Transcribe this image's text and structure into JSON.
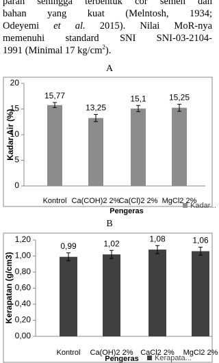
{
  "paragraph": {
    "lines": [
      [
        "parah sehingga terbentuk cor semen dan"
      ],
      [
        "bahan yang kuat (Melntosh, 1934;"
      ],
      [
        "Odeyemi ",
        "et al.",
        " 2015). Nilai MoR-nya"
      ],
      [
        "memenuhi standard SNI SNI-03-2104-"
      ],
      [
        "1991 (Minimal 17 kg/cm",
        "2",
        ")."
      ]
    ]
  },
  "chart_data": [
    {
      "type": "bar",
      "label": "A",
      "x_label": "Pengeras",
      "y_label": "Kadar Air (%)",
      "categories": [
        "Kontrol",
        "Ca(COH)2 2%",
        "Ca(Cl)2 2%",
        "MgCl2  2%"
      ],
      "series": [
        {
          "name": "Kadar...",
          "color": "#8c8c8c",
          "values": [
            15.77,
            13.25,
            15.1,
            15.25
          ],
          "value_labels": [
            "15,77",
            "13,25",
            "15,1",
            "15,25"
          ],
          "errors": [
            0.5,
            0.7,
            0.6,
            0.7
          ]
        }
      ],
      "ylim": [
        0,
        20
      ],
      "yticks": [
        0,
        5,
        10,
        15,
        20
      ],
      "grid": false
    },
    {
      "type": "bar",
      "label": "B",
      "x_label": "Pengeras",
      "y_label": "Kerapatan (g/cm3)",
      "categories": [
        "Kontrol",
        "Ca(OH)2 2%",
        "CaCl2 2%",
        "MgCl2  2%"
      ],
      "series": [
        {
          "name": "Kerapata...",
          "color": "#404040",
          "values": [
            0.99,
            1.02,
            1.08,
            1.06
          ],
          "value_labels": [
            "0,99",
            "1,02",
            "1,08",
            "1,06"
          ],
          "errors": [
            0.05,
            0.05,
            0.05,
            0.05
          ]
        }
      ],
      "ylim": [
        0,
        1.2
      ],
      "yticks": [
        {
          "value": 0,
          "label": "0,00"
        },
        {
          "value": 0.2,
          "label": "0,20"
        },
        {
          "value": 0.4,
          "label": "0,40"
        },
        {
          "value": 0.6,
          "label": "0,60"
        },
        {
          "value": 0.8,
          "label": "0,80"
        },
        {
          "value": 1,
          "label": "1,00"
        },
        {
          "value": 1.2,
          "label": "1,20"
        }
      ],
      "grid": false
    }
  ]
}
